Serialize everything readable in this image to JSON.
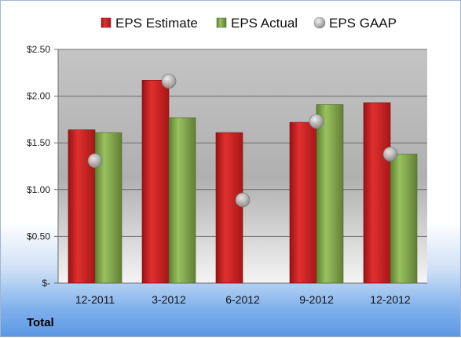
{
  "chart_data": {
    "type": "bar",
    "categories": [
      "12-2011",
      "3-2012",
      "6-2012",
      "9-2012",
      "12-2012"
    ],
    "series": [
      {
        "name": "EPS Estimate",
        "kind": "bar",
        "color": "#cc1f1f",
        "values": [
          1.64,
          2.17,
          1.61,
          1.72,
          1.93
        ]
      },
      {
        "name": "EPS Actual",
        "kind": "bar",
        "color": "#7ea54a",
        "values": [
          1.61,
          1.77,
          null,
          1.91,
          1.38
        ]
      },
      {
        "name": "EPS GAAP",
        "kind": "scatter",
        "color": "#b4b4b4",
        "values": [
          1.31,
          2.16,
          0.89,
          1.73,
          1.38
        ]
      }
    ],
    "y_ticks": [
      {
        "value": 0,
        "label": "$-"
      },
      {
        "value": 0.5,
        "label": "$0.50"
      },
      {
        "value": 1.0,
        "label": "$1.00"
      },
      {
        "value": 1.5,
        "label": "$1.50"
      },
      {
        "value": 2.0,
        "label": "$2.00"
      },
      {
        "value": 2.5,
        "label": "$2.50"
      }
    ],
    "ylim": [
      0,
      2.5
    ],
    "grid": true,
    "legend_position": "top",
    "footer_label": "Total"
  }
}
